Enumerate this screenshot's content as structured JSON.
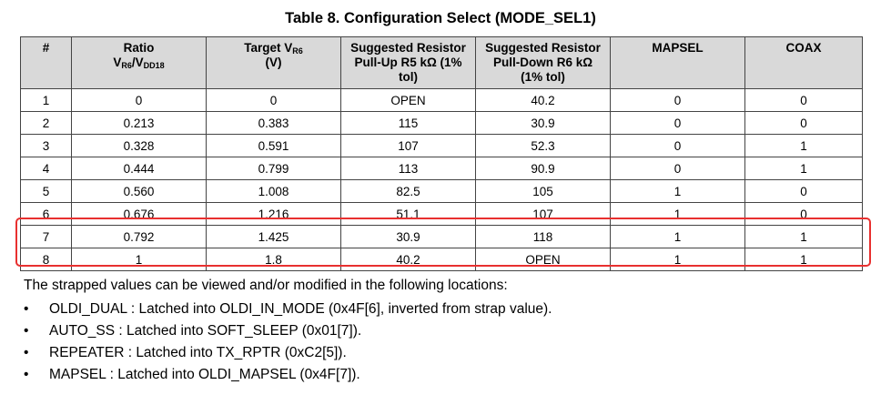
{
  "title": "Table 8.  Configuration Select (MODE_SEL1)",
  "headers": {
    "num": "#",
    "ratio_line1": "Ratio",
    "ratio_v": "V",
    "ratio_sub1": "R6",
    "ratio_slash": "/V",
    "ratio_sub2": "DD18",
    "target_line1": "Target V",
    "target_sub": "R6",
    "target_line2": "(V)",
    "pullup": [
      "Suggested Resistor",
      "Pull-Up R5 kΩ (1%",
      "tol)"
    ],
    "pulldown": [
      "Suggested Resistor",
      "Pull-Down R6 kΩ",
      "(1% tol)"
    ],
    "mapsel": "MAPSEL",
    "coax": "COAX"
  },
  "rows": [
    [
      "1",
      "0",
      "0",
      "OPEN",
      "40.2",
      "0",
      "0"
    ],
    [
      "2",
      "0.213",
      "0.383",
      "115",
      "30.9",
      "0",
      "0"
    ],
    [
      "3",
      "0.328",
      "0.591",
      "107",
      "52.3",
      "0",
      "1"
    ],
    [
      "4",
      "0.444",
      "0.799",
      "113",
      "90.9",
      "0",
      "1"
    ],
    [
      "5",
      "0.560",
      "1.008",
      "82.5",
      "105",
      "1",
      "0"
    ],
    [
      "6",
      "0.676",
      "1.216",
      "51.1",
      "107",
      "1",
      "0"
    ],
    [
      "7",
      "0.792",
      "1.425",
      "30.9",
      "118",
      "1",
      "1"
    ],
    [
      "8",
      "1",
      "1.8",
      "40.2",
      "OPEN",
      "1",
      "1"
    ]
  ],
  "paragraph": "The strapped values can be viewed and/or modified in the following locations:",
  "bullet_char": "•",
  "bullets": [
    "OLDI_DUAL : Latched into OLDI_IN_MODE (0x4F[6], inverted from strap value).",
    "AUTO_SS : Latched into SOFT_SLEEP (0x01[7]).",
    "REPEATER : Latched into TX_RPTR (0xC2[5]).",
    "MAPSEL : Latched into OLDI_MAPSEL (0x4F[7])."
  ],
  "highlight_color": "#e8302f",
  "header_bg": "#d9d9d9"
}
